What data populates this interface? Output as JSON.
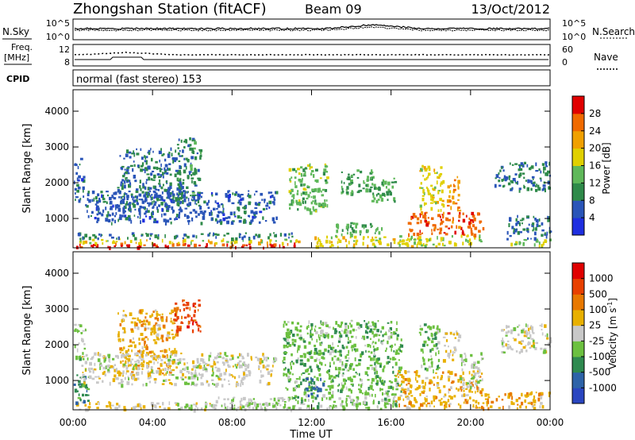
{
  "header": {
    "station": "Zhongshan Station (fitACF)",
    "beam": "Beam 09",
    "date": "13/Oct/2012"
  },
  "top_panels": {
    "nsky_label": "N.Sky",
    "nsearch_label": "N.Search",
    "noise_ticks_left": [
      "10^5",
      "10^0"
    ],
    "noise_ticks_right": [
      "10^5",
      "10^0"
    ],
    "freq_label_1": "Freq.",
    "freq_label_2": "[MHz]",
    "freq_ticks": [
      "12",
      "8"
    ],
    "nave_ticks": [
      "60",
      "0"
    ],
    "nave_label": "Nave",
    "cpid_label": "CPID",
    "mode_text": "normal (fast stereo) 153"
  },
  "axes": {
    "x_ticks": [
      "00:00",
      "04:00",
      "08:00",
      "12:00",
      "16:00",
      "20:00",
      "00:00"
    ],
    "x_title": "Time UT",
    "y_ticks": [
      "1000",
      "2000",
      "3000",
      "4000"
    ],
    "y_title": "Slant Range [km]"
  },
  "colors": {
    "power_scale": [
      "#1f2fe0",
      "#2a55b8",
      "#2f8a4a",
      "#5fb85a",
      "#e0d000",
      "#f0a000",
      "#f06a00",
      "#e00000"
    ],
    "velocity_scale": [
      "#2a46c0",
      "#2e63a8",
      "#2f8a50",
      "#6cc040",
      "#c8c8c8",
      "#e8b000",
      "#e87800",
      "#e84000",
      "#e00000"
    ]
  },
  "chart_data": [
    {
      "type": "heatmap",
      "panel": "power",
      "xlabel": "Time UT",
      "ylabel": "Slant Range [km]",
      "xlim": [
        0,
        24
      ],
      "ylim": [
        180,
        4600
      ],
      "colorbar": {
        "label": "Power [dB]",
        "ticks": [
          "4",
          "8",
          "12",
          "16",
          "20",
          "24",
          "28"
        ],
        "range": [
          0,
          30
        ]
      },
      "regions": [
        {
          "t0": 0.0,
          "t1": 11.4,
          "r0": 210,
          "r1": 330,
          "value": 27
        },
        {
          "t0": 0.0,
          "t1": 11.4,
          "r0": 330,
          "r1": 450,
          "value": 17
        },
        {
          "t0": 0.2,
          "t1": 11.0,
          "r0": 450,
          "r1": 620,
          "value": 8
        },
        {
          "t0": 12.0,
          "t1": 17.5,
          "r0": 230,
          "r1": 520,
          "value": 17
        },
        {
          "t0": 13.0,
          "t1": 15.5,
          "r0": 520,
          "r1": 900,
          "value": 12
        },
        {
          "t0": 16.3,
          "t1": 20.6,
          "r0": 250,
          "r1": 560,
          "value": 15
        },
        {
          "t0": 16.8,
          "t1": 20.6,
          "r0": 560,
          "r1": 1200,
          "value": 25
        },
        {
          "t0": 17.4,
          "t1": 18.6,
          "r0": 1200,
          "r1": 2500,
          "value": 17
        },
        {
          "t0": 18.8,
          "t1": 19.4,
          "r0": 1200,
          "r1": 2200,
          "value": 21
        },
        {
          "t0": 15.0,
          "t1": 16.2,
          "r0": 1500,
          "r1": 2200,
          "value": 12
        },
        {
          "t0": 10.8,
          "t1": 12.8,
          "r0": 1200,
          "r1": 2600,
          "value": 13
        },
        {
          "t0": 13.4,
          "t1": 15.0,
          "r0": 1700,
          "r1": 2400,
          "value": 11
        },
        {
          "t0": 2.2,
          "t1": 5.4,
          "r0": 1200,
          "r1": 3000,
          "value": 7
        },
        {
          "t0": 5.2,
          "t1": 6.4,
          "r0": 1500,
          "r1": 3300,
          "value": 9
        },
        {
          "t0": 0.6,
          "t1": 10.2,
          "r0": 900,
          "r1": 1800,
          "value": 6
        },
        {
          "t0": 21.2,
          "t1": 24.0,
          "r0": 1800,
          "r1": 2600,
          "value": 8
        },
        {
          "t0": 21.8,
          "t1": 24.0,
          "r0": 250,
          "r1": 450,
          "value": 14
        },
        {
          "t0": 21.8,
          "t1": 24.0,
          "r0": 450,
          "r1": 1100,
          "value": 7
        },
        {
          "t0": 0.0,
          "t1": 0.5,
          "r0": 1500,
          "r1": 2700,
          "value": 6
        }
      ]
    },
    {
      "type": "heatmap",
      "panel": "velocity",
      "xlabel": "Time UT",
      "ylabel": "Slant Range [km]",
      "xlim": [
        0,
        24
      ],
      "ylim": [
        180,
        4600
      ],
      "colorbar": {
        "label": "Velocity [m s^-1]",
        "ticks": [
          "1000",
          "500",
          "100",
          "25",
          "-25",
          "-100",
          "-500",
          "-1000"
        ],
        "range": [
          -1200,
          1200
        ]
      },
      "regions": [
        {
          "t0": 0.0,
          "t1": 5.0,
          "r0": 210,
          "r1": 420,
          "value": 150
        },
        {
          "t0": 5.0,
          "t1": 11.0,
          "r0": 210,
          "r1": 420,
          "value": -40
        },
        {
          "t0": 7.0,
          "t1": 11.5,
          "r0": 220,
          "r1": 560,
          "value": -120
        },
        {
          "t0": 11.0,
          "t1": 16.5,
          "r0": 230,
          "r1": 720,
          "value": -250
        },
        {
          "t0": 10.5,
          "t1": 16.5,
          "r0": 720,
          "r1": 2700,
          "value": -300
        },
        {
          "t0": 11.6,
          "t1": 12.6,
          "r0": 500,
          "r1": 1100,
          "value": -800
        },
        {
          "t0": 16.2,
          "t1": 20.6,
          "r0": 250,
          "r1": 1300,
          "value": 300
        },
        {
          "t0": 17.4,
          "t1": 18.4,
          "r0": 1300,
          "r1": 2600,
          "value": -300
        },
        {
          "t0": 18.6,
          "t1": 19.4,
          "r0": 1600,
          "r1": 2400,
          "value": 60
        },
        {
          "t0": 19.4,
          "t1": 20.6,
          "r0": 800,
          "r1": 1800,
          "value": -120
        },
        {
          "t0": 20.6,
          "t1": 24.0,
          "r0": 250,
          "r1": 700,
          "value": 300
        },
        {
          "t0": 21.5,
          "t1": 24.0,
          "r0": 1800,
          "r1": 2600,
          "value": 0
        },
        {
          "t0": 2.2,
          "t1": 5.2,
          "r0": 1200,
          "r1": 3000,
          "value": 300
        },
        {
          "t0": 5.0,
          "t1": 6.4,
          "r0": 2400,
          "r1": 3300,
          "value": 800
        },
        {
          "t0": 0.0,
          "t1": 0.8,
          "r0": 400,
          "r1": 1200,
          "value": -600
        },
        {
          "t0": 0.3,
          "t1": 10.2,
          "r0": 900,
          "r1": 1800,
          "value": 0
        },
        {
          "t0": 0.0,
          "t1": 0.6,
          "r0": 1600,
          "r1": 2600,
          "value": -200
        }
      ]
    }
  ]
}
